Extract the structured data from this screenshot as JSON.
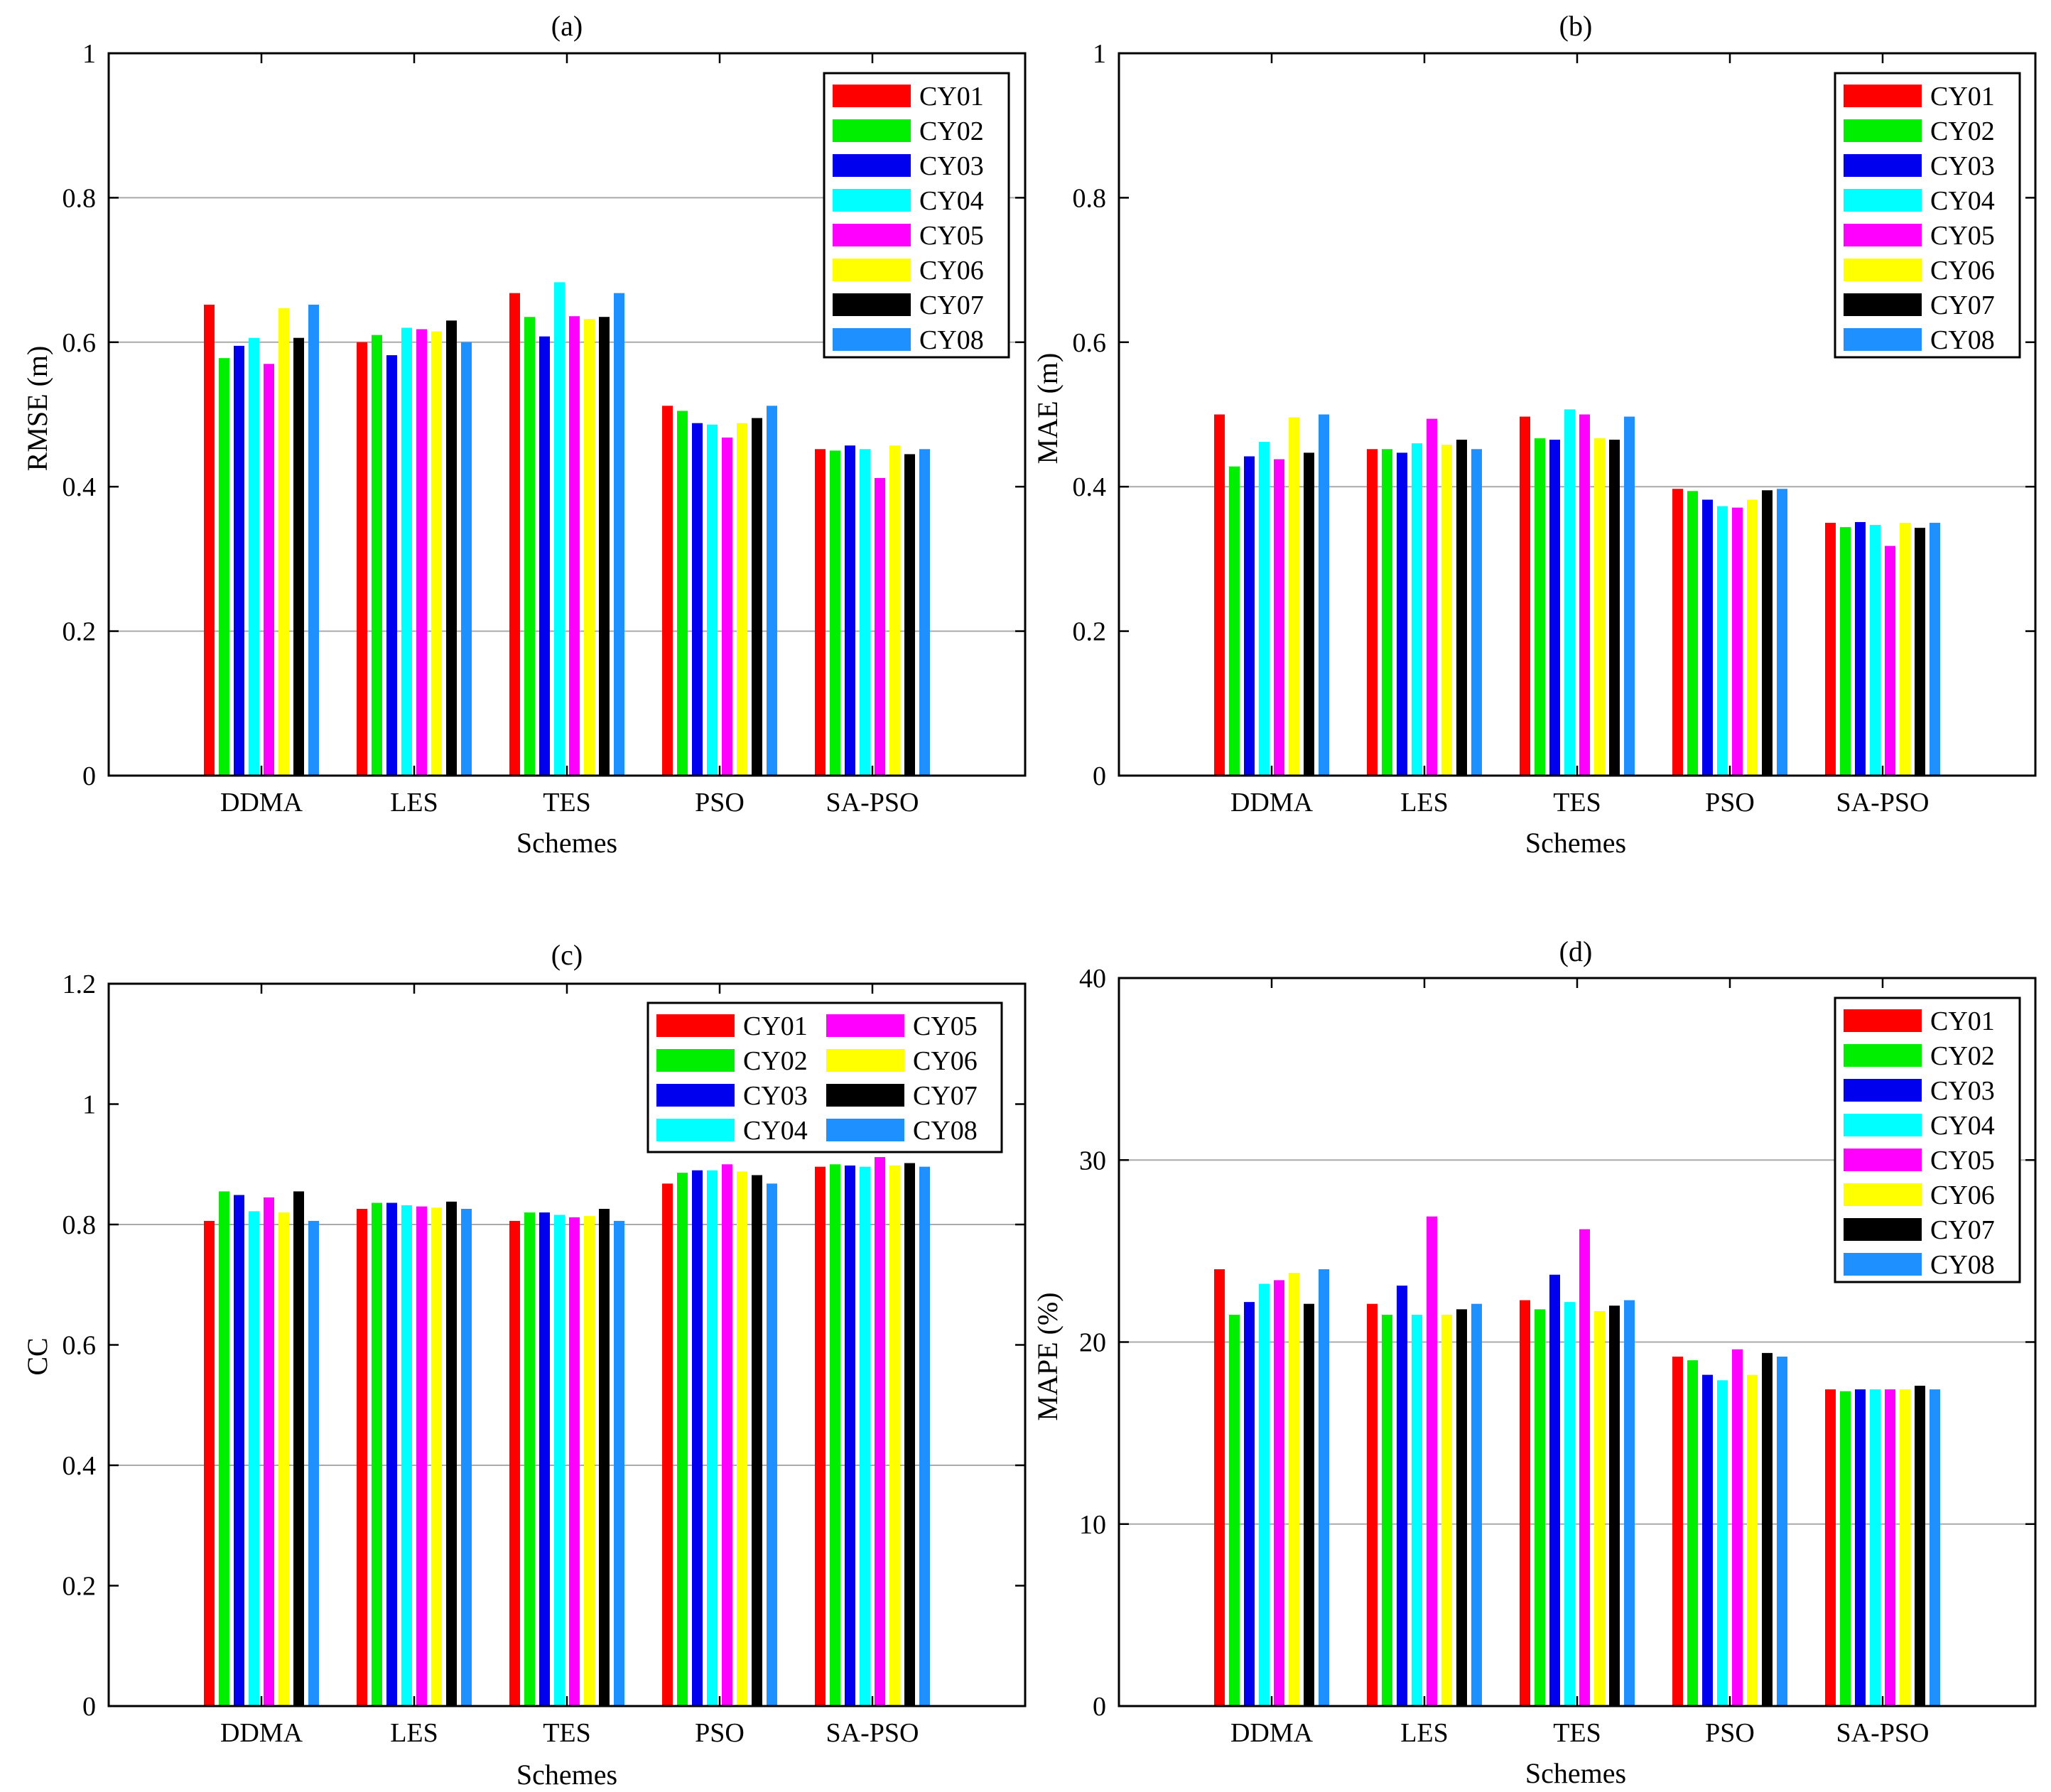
{
  "colors": {
    "CY01": "#ff0000",
    "CY02": "#00ee00",
    "CY03": "#0000ee",
    "CY04": "#00ffff",
    "CY05": "#ff00ff",
    "CY06": "#ffff00",
    "CY07": "#000000",
    "CY08": "#1e90ff"
  },
  "chart_data": [
    {
      "id": "a",
      "type": "bar",
      "title": "(a)",
      "xlabel": "Schemes",
      "ylabel": "RMSE (m)",
      "ylim": [
        0,
        1
      ],
      "yticks": [
        "0",
        "0.2",
        "0.4",
        "0.6",
        "0.8",
        "1"
      ],
      "categories": [
        "DDMA",
        "LES",
        "TES",
        "PSO",
        "SA-PSO"
      ],
      "legend_columns": 1,
      "legend_position": "top-right",
      "series": [
        {
          "name": "CY01",
          "values": [
            0.652,
            0.6,
            0.668,
            0.512,
            0.452
          ]
        },
        {
          "name": "CY02",
          "values": [
            0.578,
            0.61,
            0.635,
            0.505,
            0.45
          ]
        },
        {
          "name": "CY03",
          "values": [
            0.595,
            0.582,
            0.608,
            0.488,
            0.457
          ]
        },
        {
          "name": "CY04",
          "values": [
            0.606,
            0.62,
            0.683,
            0.486,
            0.452
          ]
        },
        {
          "name": "CY05",
          "values": [
            0.57,
            0.618,
            0.636,
            0.468,
            0.412
          ]
        },
        {
          "name": "CY06",
          "values": [
            0.647,
            0.615,
            0.632,
            0.488,
            0.457
          ]
        },
        {
          "name": "CY07",
          "values": [
            0.606,
            0.63,
            0.635,
            0.495,
            0.445
          ]
        },
        {
          "name": "CY08",
          "values": [
            0.652,
            0.6,
            0.668,
            0.512,
            0.452
          ]
        }
      ]
    },
    {
      "id": "b",
      "type": "bar",
      "title": "(b)",
      "xlabel": "Schemes",
      "ylabel": "MAE (m)",
      "ylim": [
        0,
        1
      ],
      "yticks": [
        "0",
        "0.2",
        "0.4",
        "0.6",
        "0.8",
        "1"
      ],
      "categories": [
        "DDMA",
        "LES",
        "TES",
        "PSO",
        "SA-PSO"
      ],
      "legend_columns": 1,
      "legend_position": "top-right",
      "series": [
        {
          "name": "CY01",
          "values": [
            0.5,
            0.452,
            0.497,
            0.397,
            0.35
          ]
        },
        {
          "name": "CY02",
          "values": [
            0.428,
            0.452,
            0.467,
            0.394,
            0.344
          ]
        },
        {
          "name": "CY03",
          "values": [
            0.442,
            0.447,
            0.465,
            0.382,
            0.351
          ]
        },
        {
          "name": "CY04",
          "values": [
            0.462,
            0.46,
            0.507,
            0.373,
            0.347
          ]
        },
        {
          "name": "CY05",
          "values": [
            0.438,
            0.494,
            0.5,
            0.371,
            0.318
          ]
        },
        {
          "name": "CY06",
          "values": [
            0.496,
            0.458,
            0.467,
            0.382,
            0.35
          ]
        },
        {
          "name": "CY07",
          "values": [
            0.447,
            0.465,
            0.465,
            0.395,
            0.343
          ]
        },
        {
          "name": "CY08",
          "values": [
            0.5,
            0.452,
            0.497,
            0.397,
            0.35
          ]
        }
      ]
    },
    {
      "id": "c",
      "type": "bar",
      "title": "(c)",
      "xlabel": "Schemes",
      "ylabel": "CC",
      "ylim": [
        0,
        1.2
      ],
      "yticks": [
        "0",
        "0.2",
        "0.4",
        "0.6",
        "0.8",
        "1",
        "1.2"
      ],
      "categories": [
        "DDMA",
        "LES",
        "TES",
        "PSO",
        "SA-PSO"
      ],
      "legend_columns": 2,
      "legend_position": "top-right",
      "series": [
        {
          "name": "CY01",
          "values": [
            0.806,
            0.826,
            0.806,
            0.868,
            0.896
          ]
        },
        {
          "name": "CY02",
          "values": [
            0.855,
            0.836,
            0.82,
            0.886,
            0.9
          ]
        },
        {
          "name": "CY03",
          "values": [
            0.849,
            0.836,
            0.82,
            0.89,
            0.898
          ]
        },
        {
          "name": "CY04",
          "values": [
            0.822,
            0.832,
            0.816,
            0.89,
            0.896
          ]
        },
        {
          "name": "CY05",
          "values": [
            0.845,
            0.83,
            0.812,
            0.9,
            0.912
          ]
        },
        {
          "name": "CY06",
          "values": [
            0.82,
            0.828,
            0.814,
            0.888,
            0.898
          ]
        },
        {
          "name": "CY07",
          "values": [
            0.855,
            0.838,
            0.826,
            0.882,
            0.902
          ]
        },
        {
          "name": "CY08",
          "values": [
            0.806,
            0.826,
            0.806,
            0.868,
            0.896
          ]
        }
      ]
    },
    {
      "id": "d",
      "type": "bar",
      "title": "(d)",
      "xlabel": "Schemes",
      "ylabel": "MAPE (%)",
      "ylim": [
        0,
        40
      ],
      "yticks": [
        "0",
        "10",
        "20",
        "30",
        "40"
      ],
      "categories": [
        "DDMA",
        "LES",
        "TES",
        "PSO",
        "SA-PSO"
      ],
      "legend_columns": 1,
      "legend_position": "top-right",
      "series": [
        {
          "name": "CY01",
          "values": [
            24.0,
            22.1,
            22.3,
            19.2,
            17.4
          ]
        },
        {
          "name": "CY02",
          "values": [
            21.5,
            21.5,
            21.8,
            19.0,
            17.3
          ]
        },
        {
          "name": "CY03",
          "values": [
            22.2,
            23.1,
            23.7,
            18.2,
            17.4
          ]
        },
        {
          "name": "CY04",
          "values": [
            23.2,
            21.5,
            22.2,
            17.9,
            17.4
          ]
        },
        {
          "name": "CY05",
          "values": [
            23.4,
            26.9,
            26.2,
            19.6,
            17.4
          ]
        },
        {
          "name": "CY06",
          "values": [
            23.8,
            21.5,
            21.7,
            18.2,
            17.4
          ]
        },
        {
          "name": "CY07",
          "values": [
            22.1,
            21.8,
            22.0,
            19.4,
            17.6
          ]
        },
        {
          "name": "CY08",
          "values": [
            24.0,
            22.1,
            22.3,
            19.2,
            17.4
          ]
        }
      ]
    }
  ]
}
